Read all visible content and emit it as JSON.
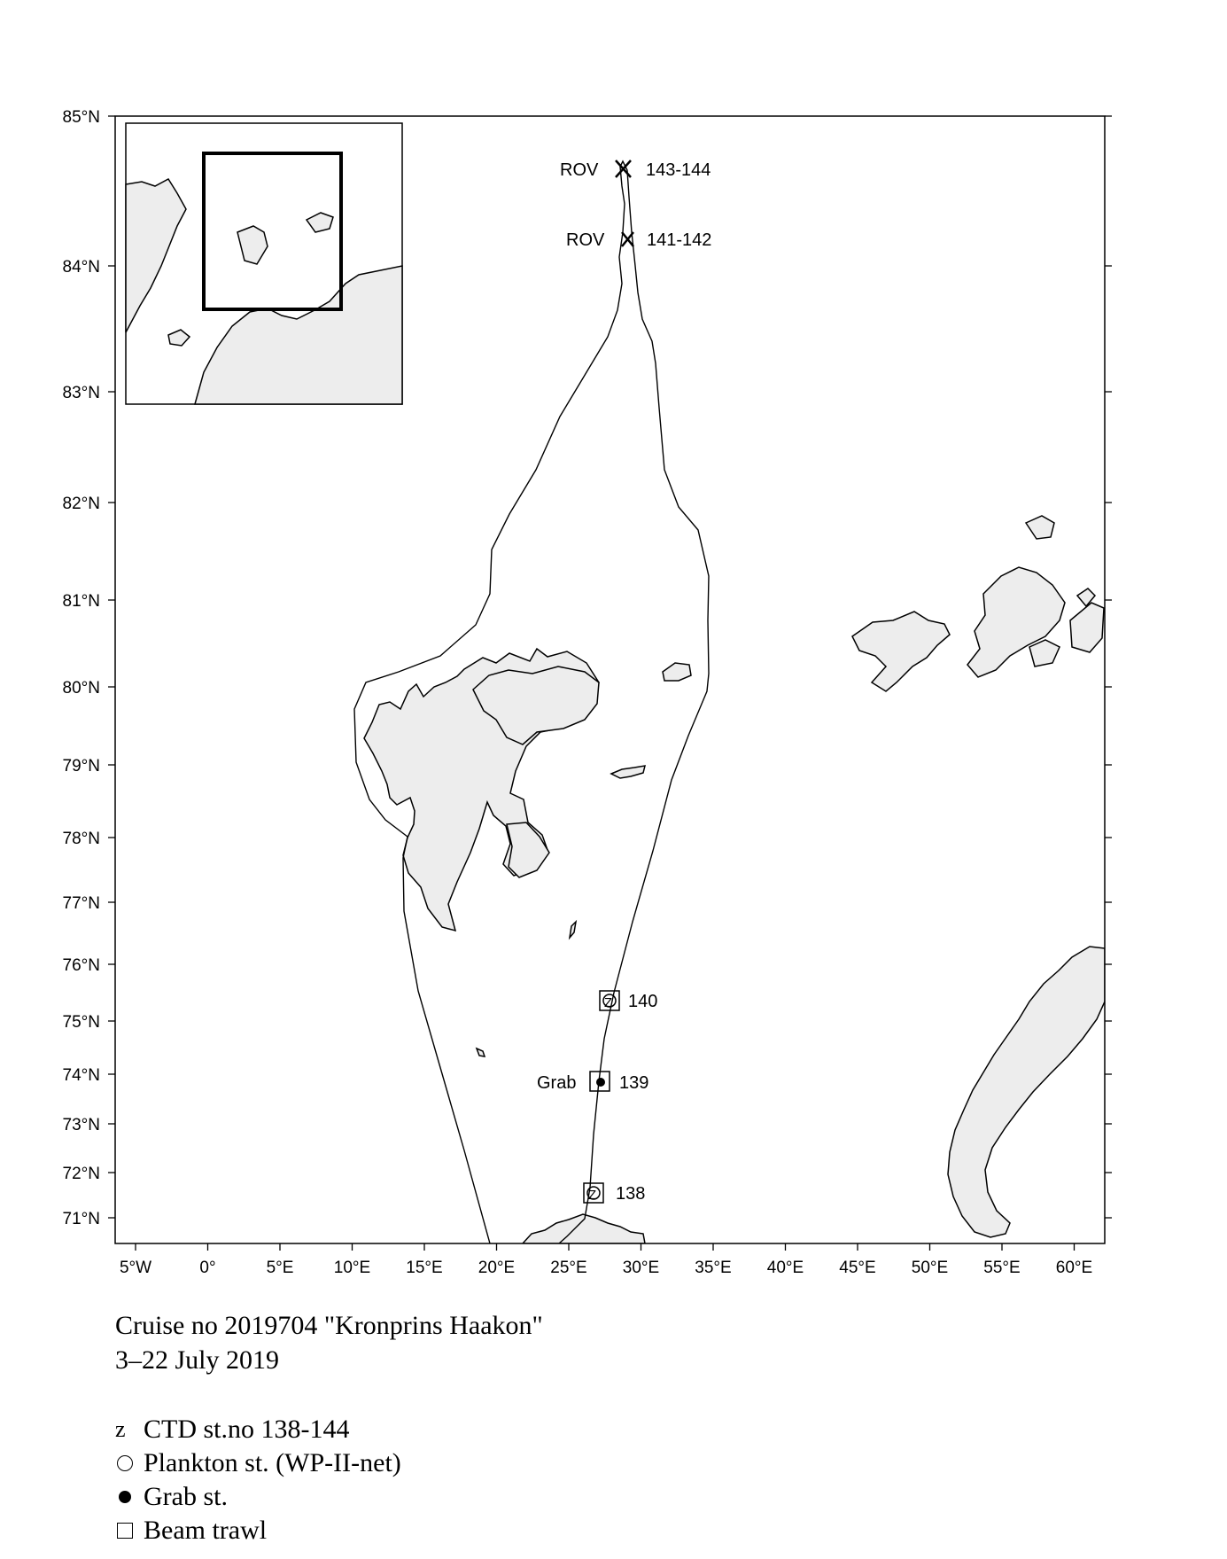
{
  "map": {
    "latitude_labels": [
      "85°N",
      "84°N",
      "83°N",
      "82°N",
      "81°N",
      "80°N",
      "79°N",
      "78°N",
      "77°N",
      "76°N",
      "75°N",
      "74°N",
      "73°N",
      "72°N",
      "71°N"
    ],
    "longitude_labels": [
      "5°W",
      "0°",
      "5°E",
      "10°E",
      "15°E",
      "20°E",
      "25°E",
      "30°E",
      "35°E",
      "40°E",
      "45°E",
      "50°E",
      "55°E",
      "60°E"
    ],
    "stations": [
      {
        "number": "143-144",
        "type_label": "ROV",
        "symbol": "x-cross"
      },
      {
        "number": "141-142",
        "type_label": "ROV",
        "symbol": "x-cross"
      },
      {
        "number": "140",
        "type_label": "",
        "symbol": "ctd-plankton-beam"
      },
      {
        "number": "139",
        "type_label": "Grab",
        "symbol": "grab-beam"
      },
      {
        "number": "138",
        "type_label": "",
        "symbol": "ctd-plankton-beam"
      }
    ],
    "land_color": "#ededed",
    "inset": {
      "extent_box": "Svalbard / Barents Sea study area"
    }
  },
  "caption": {
    "line1": "Cruise no 2019704  \"Kronprins Haakon\"",
    "line2": "3–22 July 2019"
  },
  "legend": [
    {
      "symbol": "z",
      "label": "CTD st.no 138-144"
    },
    {
      "symbol": "open-circle-icon",
      "label": "Plankton st. (WP-II-net)"
    },
    {
      "symbol": "filled-dot-icon",
      "label": "Grab st."
    },
    {
      "symbol": "open-square-icon",
      "label": "Beam trawl"
    }
  ]
}
